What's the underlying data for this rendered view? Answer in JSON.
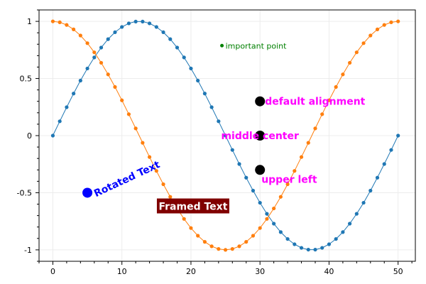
{
  "chart_data": {
    "type": "scatter",
    "title": "",
    "xlabel": "",
    "ylabel": "",
    "xlim": [
      -2,
      52.5
    ],
    "ylim": [
      -1.1,
      1.1
    ],
    "grid": true,
    "x_ticks": [
      "0",
      "10",
      "20",
      "30",
      "40",
      "50"
    ],
    "y_ticks": [
      "1",
      "0.5",
      "0",
      "-0.5",
      "-1"
    ],
    "series": [
      {
        "color": "#1f77b4",
        "function": "sin",
        "period": 50,
        "points": 51,
        "x": [
          0,
          50
        ],
        "y_range": [
          -1,
          1
        ]
      },
      {
        "color": "#ff7f0e",
        "function": "cos",
        "period": 50,
        "points": 51,
        "x": [
          0,
          50
        ],
        "y_range": [
          -1,
          1
        ]
      }
    ],
    "annotations": [
      {
        "text": "important point",
        "x": 25,
        "y": 0.8,
        "color": "#008000",
        "marker": "small-dot"
      },
      {
        "text": "default alignment",
        "x": 30,
        "y": 0.3,
        "color": "#ff00ff",
        "marker": "black-dot"
      },
      {
        "text": "middle center",
        "x": 30,
        "y": 0,
        "color": "#ff00ff",
        "marker": "black-dot"
      },
      {
        "text": "upper left",
        "x": 30,
        "y": -0.3,
        "color": "#ff00ff",
        "marker": "black-dot"
      },
      {
        "text": "Rotated Text",
        "x": 5,
        "y": -0.5,
        "color": "#0000ff",
        "marker": "blue-dot",
        "rotation": -25
      },
      {
        "text": "Framed Text",
        "x": 20,
        "y": -0.6,
        "color": "#ffffff",
        "background": "#800000"
      }
    ]
  }
}
